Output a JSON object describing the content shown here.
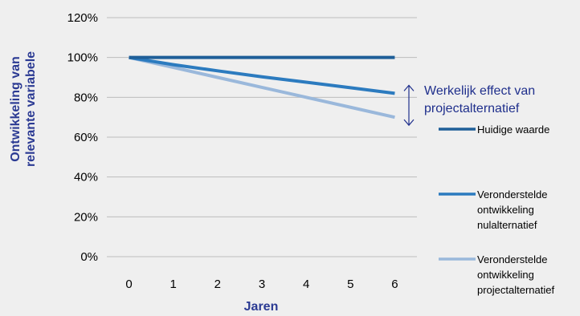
{
  "colors": {
    "background": "#efefef",
    "grid": "#bdbdbd",
    "axis_title": "#2b3a93",
    "annotation": "#1f2f8c"
  },
  "chart_data": {
    "type": "line",
    "title": "",
    "xlabel": "Jaren",
    "ylabel": "Ontwikkeling van relevante variabele",
    "ylabel_lines": [
      "Ontwikkeling van",
      "relevante variabele"
    ],
    "x": [
      0,
      1,
      2,
      3,
      4,
      5,
      6
    ],
    "xlim": [
      -0.5,
      6.5
    ],
    "ylim": [
      0,
      120
    ],
    "y_ticks": [
      0,
      20,
      40,
      60,
      80,
      100,
      120
    ],
    "y_tick_labels": [
      "0%",
      "20%",
      "40%",
      "60%",
      "80%",
      "100%",
      "120%"
    ],
    "grid": "horizontal",
    "legend_position": "right",
    "series": [
      {
        "name": "Huidige waarde",
        "name_lines": [
          "Huidige waarde"
        ],
        "color": "#1f5f99",
        "values": [
          100,
          100,
          100,
          100,
          100,
          100,
          100
        ]
      },
      {
        "name": "Veronderstelde ontwikkeling nulalternatief",
        "name_lines": [
          "Veronderstelde",
          "ontwikkeling",
          "nulalternatief"
        ],
        "color": "#2c7bbf",
        "values": [
          100,
          96.4,
          93.3,
          90.3,
          87.6,
          84.8,
          82
        ]
      },
      {
        "name": "Veronderstelde ontwikkeling projectalternatief",
        "name_lines": [
          "Veronderstelde",
          "ontwikkeling",
          "projectalternatief"
        ],
        "color": "#9ab8db",
        "values": [
          100,
          95,
          90,
          85,
          80,
          75,
          70
        ]
      }
    ],
    "annotation": {
      "text_lines": [
        "Werkelijk effect van",
        "projectalternatief"
      ],
      "from_value": 82,
      "to_value": 70
    }
  }
}
